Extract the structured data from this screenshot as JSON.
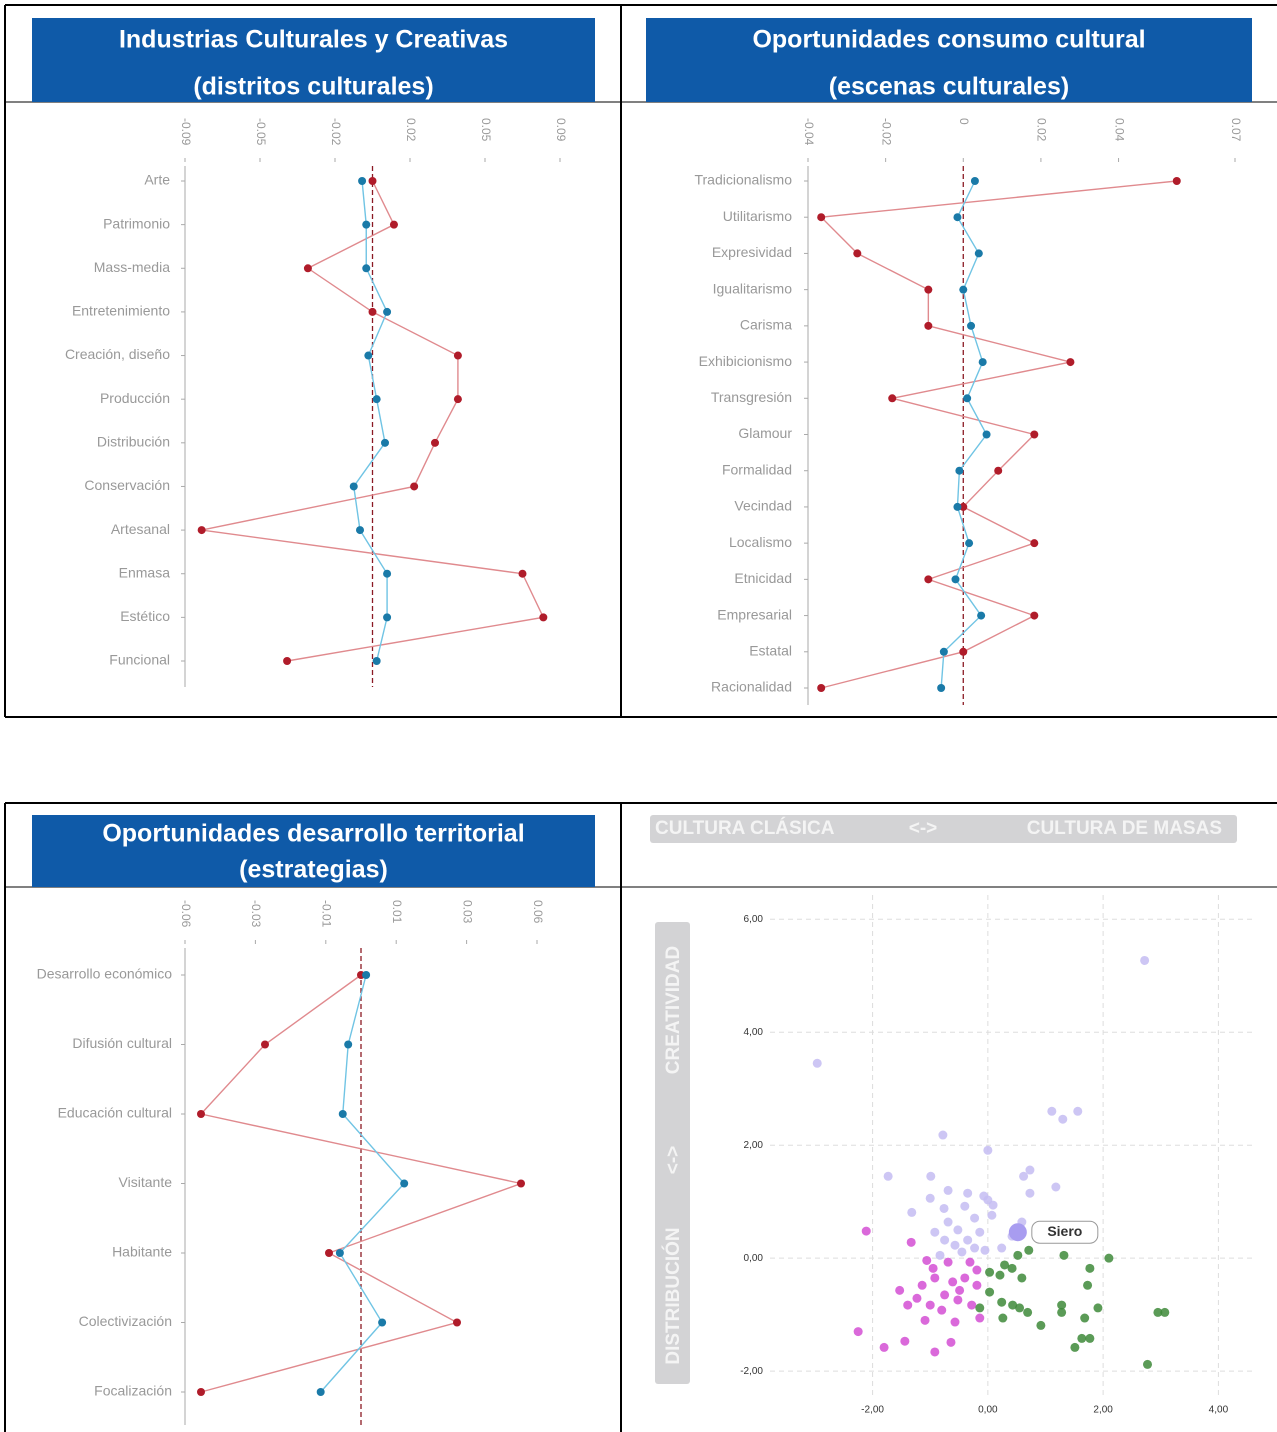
{
  "chart_data": [
    {
      "type": "profile",
      "title": "Industrias Culturales y Creativas",
      "subtitle": "(distritos culturales)",
      "categories": [
        "Arte",
        "Patrimonio",
        "Mass-media",
        "Entretenimiento",
        "Creación, diseño",
        "Producción",
        "Distribución",
        "Conservación",
        "Artesanal",
        "Enmasa",
        "Estético",
        "Funcional"
      ],
      "xlim": [
        -0.09,
        0.09
      ],
      "xticks": [
        -0.09,
        {
          "value": -0.054,
          "label": "-0.05"
        },
        {
          "value": -0.018,
          "label": "-0.02"
        },
        {
          "value": 0.018,
          "label": "0.02"
        },
        {
          "value": 0.054,
          "label": "0.05"
        },
        0.09
      ],
      "reference_line": 0,
      "series": [
        {
          "color": "#b01c2a",
          "line_color": "#e08a8e",
          "values": [
            0,
            0.0103,
            -0.031,
            0,
            0.041,
            0.041,
            0.03,
            0.02,
            -0.082,
            0.072,
            0.082,
            -0.041
          ]
        },
        {
          "color": "#1a7aa8",
          "line_color": "#70c4e4",
          "values": [
            -0.005,
            -0.003,
            -0.003,
            0.007,
            -0.002,
            0.002,
            0.006,
            -0.009,
            -0.006,
            0.007,
            0.007,
            0.002
          ]
        }
      ]
    },
    {
      "type": "profile",
      "title": "Oportunidades consumo cultural",
      "subtitle": "(escenas culturales)",
      "categories": [
        "Tradicionalismo",
        "Utilitarismo",
        "Expresividad",
        "Igualitarismo",
        "Carisma",
        "Exhibicionismo",
        "Transgresión",
        "Glamour",
        "Formalidad",
        "Vecindad",
        "Localismo",
        "Etnicidad",
        "Empresarial",
        "Estatal",
        "Racionalidad"
      ],
      "xlim": [
        -0.04,
        0.07
      ],
      "xticks": [
        -0.04,
        -0.02,
        0,
        0.02,
        0.04,
        0.07
      ],
      "reference_line": 0,
      "series": [
        {
          "color": "#b01c2a",
          "line_color": "#e08a8e",
          "values": [
            0.055,
            -0.0366,
            -0.0273,
            -0.009,
            -0.009,
            0.0276,
            -0.0183,
            0.0183,
            0.009,
            0,
            0.0183,
            -0.009,
            0.0183,
            0,
            -0.0366
          ]
        },
        {
          "color": "#1a7aa8",
          "line_color": "#70c4e4",
          "values": [
            0.003,
            -0.0015,
            0.004,
            0,
            0.002,
            0.005,
            0.001,
            0.006,
            -0.001,
            -0.0015,
            0.0015,
            -0.002,
            0.0046,
            -0.005,
            -0.0057
          ]
        }
      ]
    },
    {
      "type": "profile",
      "title": "Oportunidades desarrollo territorial",
      "subtitle": "(estrategias)",
      "categories": [
        "Desarrollo económico",
        "Difusión cultural",
        "Educación cultural",
        "Visitante",
        "Habitante",
        "Colectivización",
        "Focalización"
      ],
      "xlim": [
        -0.055,
        0.055
      ],
      "xticks": [
        {
          "value": -0.055,
          "label": "-0.06"
        },
        {
          "value": -0.033,
          "label": "-0.03"
        },
        {
          "value": -0.011,
          "label": "-0.01"
        },
        {
          "value": 0.011,
          "label": "0.01"
        },
        {
          "value": 0.033,
          "label": "0.03"
        },
        {
          "value": 0.055,
          "label": "0.06"
        }
      ],
      "reference_line": 0,
      "series": [
        {
          "color": "#b01c2a",
          "line_color": "#e08a8e",
          "values": [
            0,
            -0.03,
            -0.05,
            0.05,
            -0.01,
            0.03,
            -0.05
          ]
        },
        {
          "color": "#1a7aa8",
          "line_color": "#70c4e4",
          "values": [
            0.0016,
            -0.004,
            -0.0057,
            0.0135,
            -0.0066,
            0.0066,
            -0.0126
          ]
        }
      ]
    },
    {
      "type": "scatter",
      "top_labels": [
        "CULTURA CLÁSICA",
        "<->",
        "CULTURA DE MASAS"
      ],
      "left_labels": [
        "DISTRIBUCIÓN",
        "<->",
        "CREATIVIDAD"
      ],
      "xlim": [
        -4.3,
        4.6
      ],
      "ylim": [
        -2.9,
        6.5
      ],
      "xticks": [
        {
          "value": -2,
          "label": "-2,00"
        },
        {
          "value": 0,
          "label": "0,00"
        },
        {
          "value": 2,
          "label": "2,00"
        },
        {
          "value": 4,
          "label": "4,00"
        }
      ],
      "yticks": [
        {
          "value": -2,
          "label": "-2,00"
        },
        {
          "value": 0,
          "label": "0,00"
        },
        {
          "value": 2,
          "label": "2,00"
        },
        {
          "value": 4,
          "label": "4,00"
        },
        {
          "value": 6,
          "label": "6,00"
        }
      ],
      "grid": true,
      "series": [
        {
          "color": "#c4bcf2",
          "x": [
            2.72,
            -2.96,
            1.11,
            1.3,
            1.56,
            -0.78,
            0,
            0.73,
            0.62,
            -1.73,
            -0.99,
            -0.69,
            -0.35,
            -0.07,
            1.18,
            0.73,
            -1.0,
            0,
            -1.32,
            -0.76,
            -0.4,
            0.09,
            -0.23,
            0.07,
            0.59,
            -0.69,
            -0.92,
            -0.52,
            -0.14,
            -0.75,
            -0.57,
            -0.35,
            -0.23,
            -0.05,
            0.24,
            -0.45,
            -0.83,
            0.42
          ],
          "values": [
            5.27,
            3.45,
            2.6,
            2.46,
            2.6,
            2.18,
            1.91,
            1.56,
            1.45,
            1.45,
            1.45,
            1.2,
            1.15,
            1.1,
            1.26,
            1.15,
            1.06,
            1.03,
            0.81,
            0.88,
            0.92,
            0.94,
            0.71,
            0.76,
            0.64,
            0.64,
            0.46,
            0.5,
            0.46,
            0.32,
            0.23,
            0.32,
            0.18,
            0.14,
            0.18,
            0.11,
            0.05,
            0.39
          ]
        },
        {
          "color": "#d34fd3",
          "x": [
            -2.11,
            -1.33,
            -1.06,
            -0.95,
            -0.69,
            -0.92,
            -0.61,
            -0.4,
            -0.19,
            -0.49,
            -0.75,
            -1.14,
            -1.53,
            -1.23,
            -1.39,
            -1.0,
            -0.8,
            -0.52,
            -0.28,
            -0.14,
            -0.57,
            -1.09,
            -2.25,
            -1.8,
            -1.44,
            -0.92,
            -0.64,
            -0.19,
            -0.31
          ],
          "values": [
            0.48,
            0.28,
            -0.04,
            -0.18,
            -0.07,
            -0.35,
            -0.42,
            -0.35,
            -0.48,
            -0.57,
            -0.65,
            -0.48,
            -0.57,
            -0.71,
            -0.83,
            -0.83,
            -0.92,
            -0.74,
            -0.83,
            -1.06,
            -1.13,
            -1.1,
            -1.3,
            -1.58,
            -1.47,
            -1.66,
            -1.49,
            -0.21,
            -0.07
          ]
        },
        {
          "color": "#3e8a3a",
          "x": [
            1.32,
            2.1,
            0.71,
            0.52,
            0.29,
            0.03,
            0.21,
            0.42,
            0.59,
            1.77,
            1.73,
            0.03,
            0.24,
            0.43,
            0.55,
            0.69,
            0.26,
            1.28,
            1.28,
            1.91,
            1.68,
            2.95,
            3.07,
            0.92,
            1.63,
            1.77,
            1.51,
            2.77,
            -0.14
          ],
          "values": [
            0.05,
            0,
            0.14,
            0.05,
            -0.12,
            -0.25,
            -0.3,
            -0.18,
            -0.35,
            -0.18,
            -0.48,
            -0.6,
            -0.78,
            -0.83,
            -0.88,
            -0.96,
            -1.06,
            -0.83,
            -0.96,
            -0.88,
            -1.06,
            -0.96,
            -0.96,
            -1.19,
            -1.42,
            -1.42,
            -1.58,
            -1.88,
            -0.88
          ]
        }
      ],
      "highlight": {
        "label": "Siero",
        "x": 0.52,
        "y": 0.46,
        "color": "#a89cf0"
      }
    }
  ]
}
